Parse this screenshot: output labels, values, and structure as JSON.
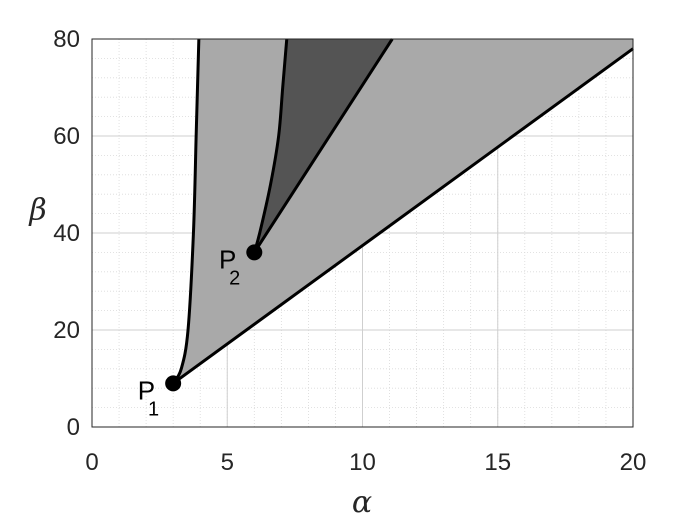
{
  "chart_data": {
    "type": "area",
    "xlabel": "α",
    "ylabel": "β",
    "xlim": [
      0,
      20
    ],
    "ylim": [
      0,
      80
    ],
    "xticks": [
      "0",
      "5",
      "10",
      "15",
      "20"
    ],
    "yticks": [
      "0",
      "20",
      "40",
      "60",
      "80"
    ],
    "grid": true,
    "grid_minor": true,
    "colors": {
      "background": "#ffffff",
      "light_region": "#a9a9a9",
      "dark_region": "#545454",
      "curve": "#000000",
      "grid": "#d9d9d9"
    },
    "regions": [
      {
        "shade": "light",
        "upper_left_boundary": [
          [
            3,
            9
          ],
          [
            3.3,
            12
          ],
          [
            3.55,
            20
          ],
          [
            3.75,
            40
          ],
          [
            3.85,
            60
          ],
          [
            3.9,
            70
          ],
          [
            3.95,
            80
          ]
        ],
        "lower_right_boundary": [
          [
            3,
            9
          ],
          [
            20,
            78
          ],
          [
            20,
            80
          ]
        ]
      },
      {
        "shade": "dark",
        "left_boundary": [
          [
            6,
            36
          ],
          [
            6.2,
            40
          ],
          [
            6.6,
            50
          ],
          [
            6.9,
            60
          ],
          [
            7.05,
            70
          ],
          [
            7.2,
            80
          ]
        ],
        "right_boundary": [
          [
            6,
            36
          ],
          [
            11.1,
            80
          ]
        ]
      }
    ],
    "points": [
      {
        "label": "P",
        "subscript": "1",
        "x": 3,
        "y": 9
      },
      {
        "label": "P",
        "subscript": "2",
        "x": 6,
        "y": 36
      }
    ]
  }
}
